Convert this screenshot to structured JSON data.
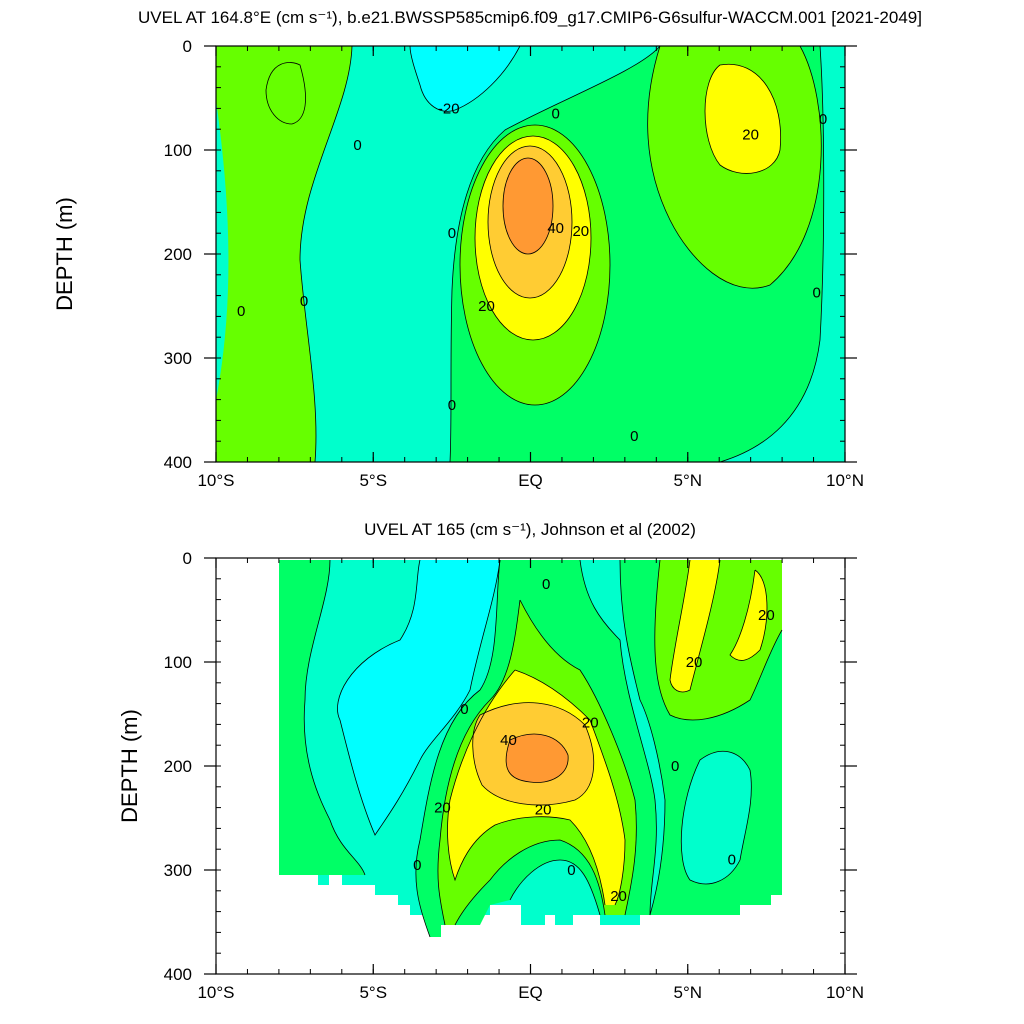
{
  "palette": {
    "neg20": "#00ffff",
    "neg10": "#00ffcc",
    "zero_to_10": "#00ff66",
    "ten_to_20": "#66ff00",
    "twenty_to_30": "#ffff00",
    "thirty_to_40": "#ffcc33",
    "forty_plus": "#ff9933",
    "background": "#ffffff",
    "line": "#000000"
  },
  "chart_data": [
    {
      "type": "heatmap",
      "subtype": "filled-contour",
      "title": "UVEL AT 164.8°E (cm s⁻¹), b.e21.BWSSP585cmip6.f09_g17.CMIP6-G6sulfur-WACCM.001 [2021-2049]",
      "xlabel": "",
      "ylabel": "DEPTH (m)",
      "xlim": [
        -10,
        10
      ],
      "ylim": [
        400,
        0
      ],
      "x_ticks": [
        {
          "value": -10,
          "label": "10°S"
        },
        {
          "value": -5,
          "label": "5°S"
        },
        {
          "value": 0,
          "label": "EQ"
        },
        {
          "value": 5,
          "label": "5°N"
        },
        {
          "value": 10,
          "label": "10°N"
        }
      ],
      "y_ticks": [
        {
          "value": 0,
          "label": "0"
        },
        {
          "value": 100,
          "label": "100"
        },
        {
          "value": 200,
          "label": "200"
        },
        {
          "value": 300,
          "label": "300"
        },
        {
          "value": 400,
          "label": "400"
        }
      ],
      "grid": false,
      "contour_labels": [
        {
          "lat": -2.6,
          "depth": 60,
          "text": "-20"
        },
        {
          "lat": 0.8,
          "depth": 65,
          "text": "0"
        },
        {
          "lat": -5.5,
          "depth": 95,
          "text": "0"
        },
        {
          "lat": 7.0,
          "depth": 85,
          "text": "20"
        },
        {
          "lat": 9.3,
          "depth": 70,
          "text": "0"
        },
        {
          "lat": -2.5,
          "depth": 180,
          "text": "0"
        },
        {
          "lat": 0.8,
          "depth": 175,
          "text": "40"
        },
        {
          "lat": 1.6,
          "depth": 178,
          "text": "20"
        },
        {
          "lat": -1.4,
          "depth": 250,
          "text": "20"
        },
        {
          "lat": -7.2,
          "depth": 245,
          "text": "0"
        },
        {
          "lat": -9.2,
          "depth": 255,
          "text": "0"
        },
        {
          "lat": 9.1,
          "depth": 237,
          "text": "0"
        },
        {
          "lat": -2.5,
          "depth": 345,
          "text": "0"
        },
        {
          "lat": 3.3,
          "depth": 375,
          "text": "0"
        }
      ],
      "value_features": [
        {
          "name": "core",
          "lat": 0.0,
          "depth": 180,
          "peak": 45
        },
        {
          "name": "nw",
          "lat": 6.4,
          "depth": 90,
          "peak": 25
        },
        {
          "name": "sw",
          "lat": -7.5,
          "depth": 40,
          "peak": 12
        },
        {
          "name": "surface",
          "lat": -2.0,
          "depth": 20,
          "peak": -22
        }
      ]
    },
    {
      "type": "heatmap",
      "subtype": "filled-contour",
      "title": "UVEL AT 165 (cm s⁻¹), Johnson et al (2002)",
      "xlabel": "",
      "ylabel": "DEPTH (m)",
      "xlim": [
        -10,
        10
      ],
      "ylim": [
        400,
        0
      ],
      "x_ticks": [
        {
          "value": -10,
          "label": "10°S"
        },
        {
          "value": -5,
          "label": "5°S"
        },
        {
          "value": 0,
          "label": "EQ"
        },
        {
          "value": 5,
          "label": "5°N"
        },
        {
          "value": 10,
          "label": "10°N"
        }
      ],
      "y_ticks": [
        {
          "value": 0,
          "label": "0"
        },
        {
          "value": 100,
          "label": "100"
        },
        {
          "value": 200,
          "label": "200"
        },
        {
          "value": 300,
          "label": "300"
        },
        {
          "value": 400,
          "label": "400"
        }
      ],
      "grid": false,
      "data_extent_lat": [
        -8,
        8
      ],
      "contour_labels": [
        {
          "lat": 0.5,
          "depth": 25,
          "text": "0"
        },
        {
          "lat": 7.5,
          "depth": 55,
          "text": "20"
        },
        {
          "lat": 5.2,
          "depth": 100,
          "text": "20"
        },
        {
          "lat": -2.1,
          "depth": 145,
          "text": "0"
        },
        {
          "lat": 1.9,
          "depth": 158,
          "text": "20"
        },
        {
          "lat": -0.7,
          "depth": 175,
          "text": "40"
        },
        {
          "lat": 4.6,
          "depth": 200,
          "text": "0"
        },
        {
          "lat": -2.8,
          "depth": 240,
          "text": "20"
        },
        {
          "lat": 0.4,
          "depth": 242,
          "text": "20"
        },
        {
          "lat": -3.6,
          "depth": 295,
          "text": "0"
        },
        {
          "lat": 1.3,
          "depth": 300,
          "text": "0"
        },
        {
          "lat": 6.4,
          "depth": 290,
          "text": "0"
        },
        {
          "lat": 2.8,
          "depth": 325,
          "text": "20"
        }
      ],
      "value_features": [
        {
          "name": "core",
          "lat": 0.0,
          "depth": 185,
          "peak": 42
        },
        {
          "name": "ncc",
          "lat": 5.8,
          "depth": 60,
          "peak": 24
        },
        {
          "name": "west-low",
          "lat": -4.8,
          "depth": 170,
          "peak": -15
        },
        {
          "name": "east-low",
          "lat": 5.8,
          "depth": 250,
          "peak": -12
        }
      ]
    }
  ]
}
